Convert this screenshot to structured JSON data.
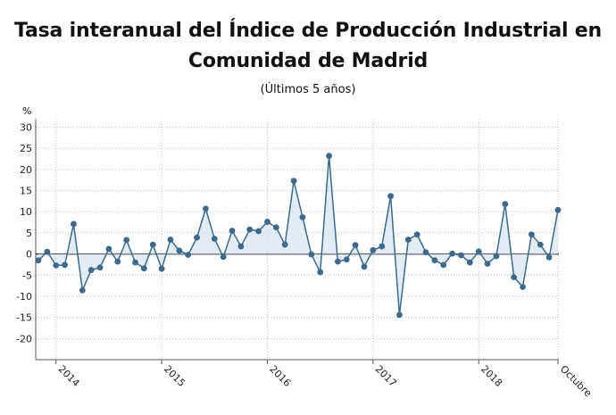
{
  "header": {
    "title_line1": "Tasa interanual del Índice de Producción Industrial en",
    "title_line2": "Comunidad de Madrid",
    "subtitle": "(Últimos 5 años)",
    "unit": "%"
  },
  "colors": {
    "line": "#3d6a8c",
    "marker": "#3d6a8c",
    "fill": "#dce7f1",
    "zero_line": "#333333",
    "grid": "#bbbbbb"
  },
  "chart_data": {
    "type": "line",
    "title": "Tasa interanual del Índice de Producción Industrial en Comunidad de Madrid",
    "subtitle": "(Últimos 5 años)",
    "ylabel": "%",
    "ylim": [
      -25,
      32
    ],
    "yticks": [
      30,
      25,
      20,
      15,
      10,
      5,
      0,
      -5,
      -10,
      -15,
      -20
    ],
    "grid": true,
    "x_start": "2013-11",
    "x_end": "2018-10",
    "xtick_labels": [
      "2014",
      "2015",
      "2016",
      "2017",
      "2018",
      "Octubre"
    ],
    "xtick_dates": [
      "2014-01",
      "2015-01",
      "2016-01",
      "2017-01",
      "2018-01",
      "2018-10"
    ],
    "series": [
      {
        "values": [
          -1.5,
          0.5,
          -2.7,
          -2.6,
          7.1,
          -8.6,
          -3.8,
          -3.2,
          1.2,
          -1.8,
          3.3,
          -2.0,
          -3.4,
          2.2,
          -3.5,
          3.4,
          0.8,
          -0.2,
          3.9,
          10.7,
          3.6,
          -0.7,
          5.5,
          1.8,
          5.8,
          5.4,
          7.6,
          6.3,
          2.2,
          17.3,
          8.7,
          -0.1,
          -4.3,
          23.2,
          -1.8,
          -1.3,
          2.1,
          -3.0,
          0.9,
          1.8,
          13.7,
          -14.4,
          3.4,
          4.6,
          0.4,
          -1.5,
          -2.6,
          0.1,
          -0.3,
          -2.0,
          0.6,
          -2.3,
          -0.5,
          11.8,
          -5.5,
          -7.8,
          4.6,
          2.2,
          -0.8,
          10.4
        ]
      }
    ]
  }
}
